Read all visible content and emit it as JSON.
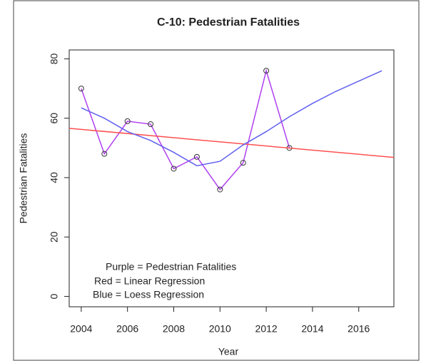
{
  "chart_data": {
    "type": "line",
    "title": "C-10: Pedestrian Fatalities",
    "x_label": "Year",
    "y_label": "Pedestrian Fatalities",
    "annotations": [
      "Purple = Pedestrian Fatalities",
      "Red = Linear Regression",
      "Blue = Loess Regression"
    ],
    "series": [
      {
        "color": "#b040f0",
        "markers": true,
        "x": [
          2004,
          2005,
          2006,
          2007,
          2008,
          2009,
          2010,
          2011,
          2012,
          2013
        ],
        "values": [
          70,
          48,
          59,
          58,
          43,
          47,
          36,
          45,
          76,
          50
        ]
      },
      {
        "color": "#ff5050",
        "markers": false,
        "x": [
          2003.48,
          2017.52
        ],
        "values": [
          56.6,
          46.8
        ]
      },
      {
        "color": "#6060f0",
        "markers": false,
        "x": [
          2004,
          2005,
          2006,
          2007,
          2008,
          2009,
          2010,
          2011,
          2012,
          2013,
          2014,
          2015,
          2016,
          2017
        ],
        "values": [
          63.5,
          60,
          55.5,
          52.5,
          48.5,
          44,
          45.5,
          51,
          55.5,
          60.5,
          65,
          69,
          72.5,
          76
        ]
      }
    ],
    "xlim": [
      2003.48,
      2017.52
    ],
    "xticks": [
      2004,
      2006,
      2008,
      2010,
      2012,
      2014,
      2016
    ],
    "ylim": [
      -3.5,
      83
    ],
    "yticks": [
      0,
      20,
      40,
      60,
      80
    ]
  }
}
